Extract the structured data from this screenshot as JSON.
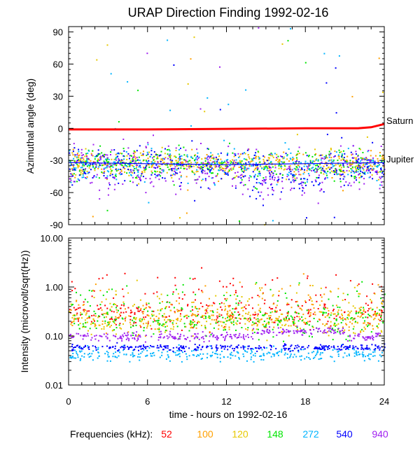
{
  "chart_data": [
    {
      "type": "scatter",
      "title": "URAP Direction Finding  1992-02-16",
      "ylabel": "Azimuthal angle (deg)",
      "xlabel": "",
      "xlim": [
        0,
        24
      ],
      "ylim": [
        -90,
        95
      ],
      "yticks": [
        90,
        60,
        30,
        0,
        -30,
        -60,
        -90
      ],
      "reference_lines": [
        {
          "name": "Saturn",
          "points": [
            [
              0,
              -1
            ],
            [
              6,
              -1
            ],
            [
              12,
              -0.5
            ],
            [
              18,
              0
            ],
            [
              22,
              0
            ],
            [
              23,
              1
            ],
            [
              24,
              4
            ]
          ]
        },
        {
          "name": "Jupiter",
          "points": [
            [
              0,
              -32
            ],
            [
              6,
              -33
            ],
            [
              12,
              -34
            ],
            [
              18,
              -33
            ],
            [
              24,
              -32
            ]
          ]
        }
      ],
      "series": [
        {
          "name": "52",
          "center": -1,
          "spread": 3
        },
        {
          "name": "100",
          "center": -33,
          "spread": 10
        },
        {
          "name": "120",
          "center": -33,
          "spread": 11
        },
        {
          "name": "148",
          "center": -33,
          "spread": 12
        },
        {
          "name": "272",
          "center": -34,
          "spread": 13
        },
        {
          "name": "540",
          "center": -35,
          "spread": 15
        },
        {
          "name": "940",
          "center": -36,
          "spread": 18
        }
      ]
    },
    {
      "type": "scatter",
      "title": "",
      "ylabel": "Intensity (microvolt/sqrt(Hz))",
      "xlabel": "time - hours on 1992-02-16",
      "xlim": [
        0,
        24
      ],
      "ylim": [
        0.01,
        10
      ],
      "yscale": "log",
      "yticks": [
        "10.00",
        "1.00",
        "0.10",
        "0.01"
      ],
      "xticks": [
        "0",
        "6",
        "12",
        "18",
        "24"
      ],
      "series": [
        {
          "name": "52",
          "baseline": 0.3
        },
        {
          "name": "100",
          "baseline": 0.25
        },
        {
          "name": "120",
          "baseline": 0.2
        },
        {
          "name": "148",
          "baseline": 0.2
        },
        {
          "name": "272",
          "baseline": 0.045
        },
        {
          "name": "540",
          "baseline": 0.06
        },
        {
          "name": "940",
          "baseline": 0.1
        }
      ]
    }
  ],
  "legend": {
    "label": "Frequencies (kHz):",
    "items": [
      {
        "name": "52",
        "color": "#ff0000"
      },
      {
        "name": "100",
        "color": "#ffa000"
      },
      {
        "name": "120",
        "color": "#e6c800"
      },
      {
        "name": "148",
        "color": "#00e600"
      },
      {
        "name": "272",
        "color": "#00b4ff"
      },
      {
        "name": "540",
        "color": "#0000ff"
      },
      {
        "name": "940",
        "color": "#a020f0"
      }
    ]
  }
}
